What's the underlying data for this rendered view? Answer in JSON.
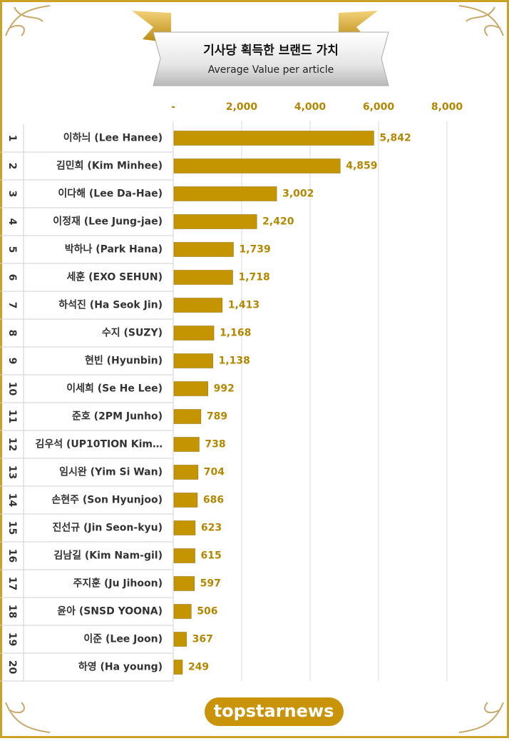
{
  "chart_data": {
    "type": "bar",
    "orientation": "horizontal",
    "title": "기사당 획득한 브랜드 가치",
    "subtitle": "Average Value per article",
    "ranks": [
      1,
      2,
      3,
      4,
      5,
      6,
      7,
      8,
      9,
      10,
      11,
      12,
      13,
      14,
      15,
      16,
      17,
      18,
      19,
      20
    ],
    "categories": [
      "이하늬 (Lee Hanee)",
      "김민희 (Kim Minhee)",
      "이다해 (Lee Da-Hae)",
      "이정재 (Lee Jung-jae)",
      "박하나 (Park Hana)",
      "세훈 (EXO SEHUN)",
      "하석진 (Ha Seok Jin)",
      "수지 (SUZY)",
      "현빈 (Hyunbin)",
      "이세희 (Se He Lee)",
      "준호 (2PM Junho)",
      "김우석 (UP10TION Kim…",
      "임시완 (Yim Si Wan)",
      "손현주 (Son Hyunjoo)",
      "진선규 (Jin Seon-kyu)",
      "김남길 (Kim Nam-gil)",
      "주지훈 (Ju Jihoon)",
      "윤아 (SNSD YOONA)",
      "이준 (Lee Joon)",
      "하영 (Ha young)"
    ],
    "values": [
      5842,
      4859,
      3002,
      2420,
      1739,
      1718,
      1413,
      1168,
      1138,
      992,
      789,
      738,
      704,
      686,
      623,
      615,
      597,
      506,
      367,
      249
    ],
    "value_labels": [
      "5,842",
      "4,859",
      "3,002",
      "2,420",
      "1,739",
      "1,718",
      "1,413",
      "1,168",
      "1,138",
      "992",
      "789",
      "738",
      "704",
      "686",
      "623",
      "615",
      "597",
      "506",
      "367",
      "249"
    ],
    "color": "#c49500",
    "xlim": [
      0,
      8000
    ],
    "xticks": [
      {
        "value": 0,
        "label": "-"
      },
      {
        "value": 2000,
        "label": "2,000"
      },
      {
        "value": 4000,
        "label": "4,000"
      },
      {
        "value": 6000,
        "label": "6,000"
      },
      {
        "value": 8000,
        "label": "8,000"
      }
    ],
    "grid": true,
    "logo": "topstarnews"
  }
}
